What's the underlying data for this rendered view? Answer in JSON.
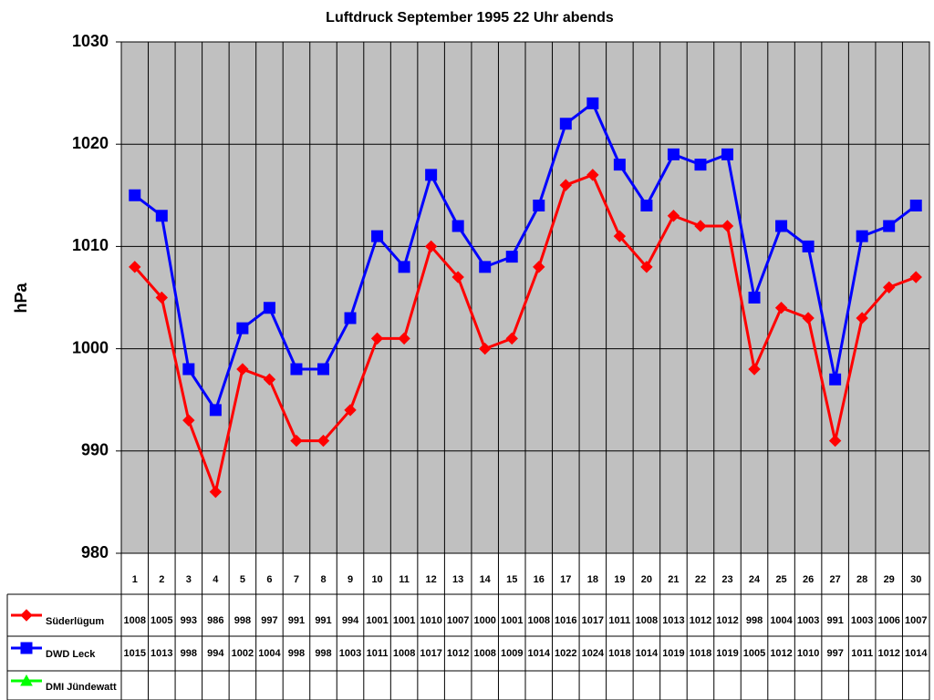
{
  "chart_data": {
    "type": "line",
    "title": "Luftdruck September 1995 22 Uhr abends",
    "y_label": "hPa",
    "categories": [
      "1",
      "2",
      "3",
      "4",
      "5",
      "6",
      "7",
      "8",
      "9",
      "10",
      "11",
      "12",
      "13",
      "14",
      "15",
      "16",
      "17",
      "18",
      "19",
      "20",
      "21",
      "22",
      "23",
      "24",
      "25",
      "26",
      "27",
      "28",
      "29",
      "30"
    ],
    "series": [
      {
        "name": "Süderlügum",
        "color": "#ff0000",
        "marker": "diamond",
        "values": [
          1008,
          1005,
          993,
          986,
          998,
          997,
          991,
          991,
          994,
          1001,
          1001,
          1010,
          1007,
          1000,
          1001,
          1008,
          1016,
          1017,
          1011,
          1008,
          1013,
          1012,
          1012,
          998,
          1004,
          1003,
          991,
          1003,
          1006,
          1007
        ]
      },
      {
        "name": "DWD Leck",
        "color": "#0000ff",
        "marker": "square",
        "values": [
          1015,
          1013,
          998,
          994,
          1002,
          1004,
          998,
          998,
          1003,
          1011,
          1008,
          1017,
          1012,
          1008,
          1009,
          1014,
          1022,
          1024,
          1018,
          1014,
          1019,
          1018,
          1019,
          1005,
          1012,
          1010,
          997,
          1011,
          1012,
          1014
        ]
      },
      {
        "name": "DMI Jündewatt",
        "color": "#00ff00",
        "marker": "triangle",
        "values": [
          null,
          null,
          null,
          null,
          null,
          null,
          null,
          null,
          null,
          null,
          null,
          null,
          null,
          null,
          null,
          null,
          null,
          null,
          null,
          null,
          null,
          null,
          null,
          null,
          null,
          null,
          null,
          null,
          null,
          null
        ]
      }
    ],
    "ylim": [
      980,
      1030
    ],
    "yticks": [
      980,
      990,
      1000,
      1010,
      1020,
      1030
    ],
    "grid": true,
    "plot_background": "#c0c0c0",
    "data_table": true
  }
}
